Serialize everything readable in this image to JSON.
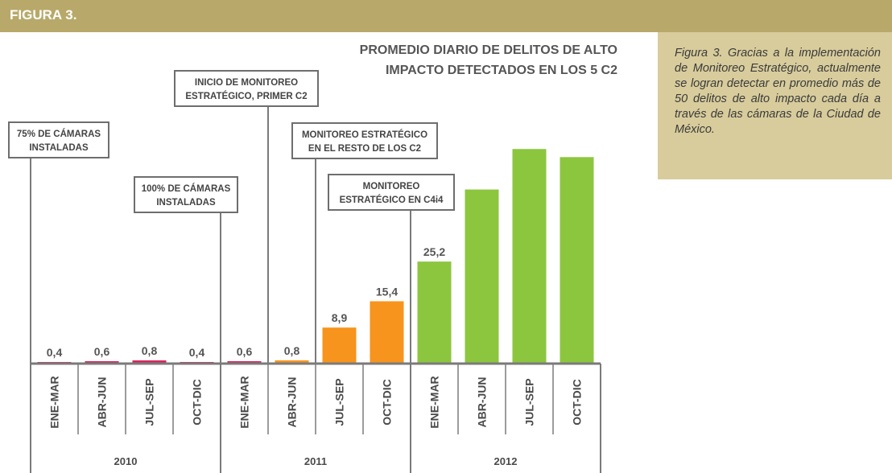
{
  "header": {
    "label": "FIGURA 3."
  },
  "caption": {
    "text": "Figura 3. Gracias a la implementación de Monitoreo Estratégico, actualmente se logran detectar en promedio más de 50 delitos de alto impacto cada día a través de las cámaras de la Ciudad de México."
  },
  "colors": {
    "header": "#b8a96a",
    "caption_bg": "#d8cc9c",
    "bar_pink": "#d9275f",
    "bar_orange": "#f7941d",
    "bar_green": "#8cc63f",
    "axis": "#7a7a7a"
  },
  "chart_data": {
    "type": "bar",
    "title_lines": [
      "PROMEDIO DIARIO DE DELITOS DE ALTO",
      "IMPACTO DETECTADOS EN LOS 5 C2"
    ],
    "categories": [
      "ENE-MAR",
      "ABR-JUN",
      "JUL-SEP",
      "OCT-DIC",
      "ENE-MAR",
      "ABR-JUN",
      "JUL-SEP",
      "OCT-DIC",
      "ENE-MAR",
      "ABR-JUN",
      "JUL-SEP",
      "OCT-DIC"
    ],
    "years": [
      "2010",
      "2011",
      "2012"
    ],
    "values": [
      0.4,
      0.6,
      0.8,
      0.4,
      0.6,
      0.8,
      8.9,
      15.4,
      25.2,
      43,
      53,
      51
    ],
    "value_labels": [
      "0,4",
      "0,6",
      "0,8",
      "0,4",
      "0,6",
      "0,8",
      "8,9",
      "15,4",
      "25,2",
      "",
      "",
      ""
    ],
    "bar_colors": [
      "#d9275f",
      "#d9275f",
      "#d9275f",
      "#d9275f",
      "#d9275f",
      "#f7941d",
      "#f7941d",
      "#f7941d",
      "#8cc63f",
      "#8cc63f",
      "#8cc63f",
      "#8cc63f"
    ],
    "ylim": [
      0,
      60
    ],
    "grid": false,
    "annotations": [
      {
        "lines": [
          "75% DE CÁMARAS",
          "INSTALADAS"
        ],
        "category_index": 0
      },
      {
        "lines": [
          "100% DE CÁMARAS",
          "INSTALADAS"
        ],
        "category_index": 4
      },
      {
        "lines": [
          "INICIO DE MONITOREO",
          "ESTRATÉGICO, PRIMER C2"
        ],
        "category_index": 5
      },
      {
        "lines": [
          "MONITOREO ESTRATÉGICO",
          "EN EL RESTO DE LOS C2"
        ],
        "category_index": 6
      },
      {
        "lines": [
          "MONITOREO",
          "ESTRATÉGICO EN C4i4"
        ],
        "category_index": 8
      }
    ]
  }
}
